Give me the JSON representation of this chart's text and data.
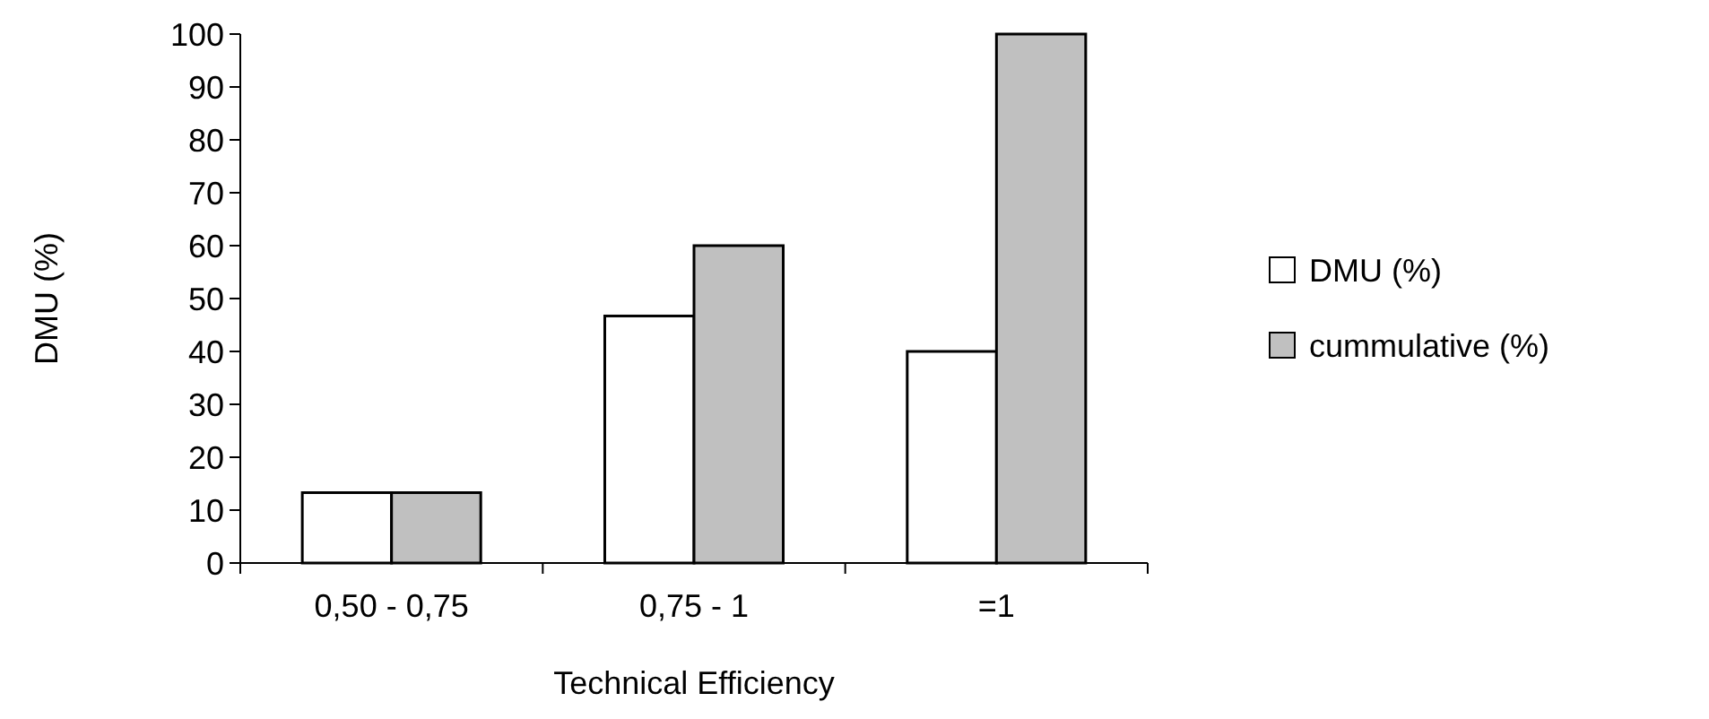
{
  "chart_data": {
    "type": "bar",
    "xlabel": "Technical Efficiency",
    "ylabel": "DMU (%)",
    "categories": [
      "0,50 - 0,75",
      "0,75 - 1",
      "=1"
    ],
    "series": [
      {
        "name": "DMU (%)",
        "color": "#ffffff",
        "values": [
          13.3,
          46.7,
          40
        ]
      },
      {
        "name": "cummulative (%)",
        "color": "#c0c0c0",
        "values": [
          13.3,
          60,
          100
        ]
      }
    ],
    "ylim": [
      0,
      100
    ],
    "yticks": [
      0,
      10,
      20,
      30,
      40,
      50,
      60,
      70,
      80,
      90,
      100
    ],
    "grid": false,
    "legend": "right"
  }
}
